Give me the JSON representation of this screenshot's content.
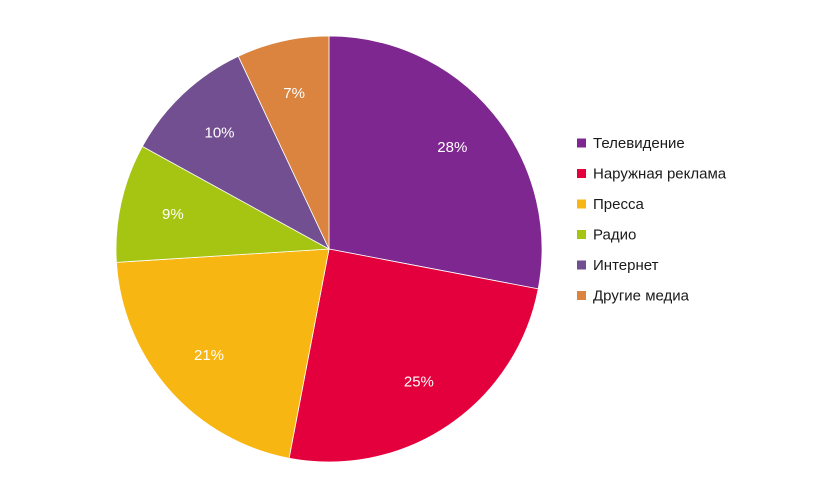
{
  "chart_data": {
    "type": "pie",
    "title": "",
    "start_angle_deg": 0,
    "direction": "clockwise",
    "legend_position": "right",
    "slices": [
      {
        "name": "Телевидение",
        "value": 28,
        "label": "28%",
        "color": "#7f2790"
      },
      {
        "name": "Наружная реклама",
        "value": 25,
        "label": "25%",
        "color": "#e4003c"
      },
      {
        "name": "Пресса",
        "value": 21,
        "label": "21%",
        "color": "#f8b613"
      },
      {
        "name": "Радио",
        "value": 9,
        "label": "9%",
        "color": "#a5c512"
      },
      {
        "name": "Интернет",
        "value": 10,
        "label": "10%",
        "color": "#724f90"
      },
      {
        "name": "Другие медиа",
        "value": 7,
        "label": "7%",
        "color": "#da8440"
      }
    ]
  }
}
